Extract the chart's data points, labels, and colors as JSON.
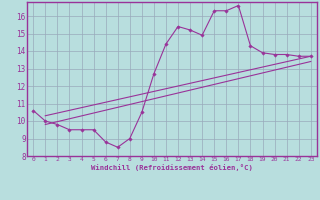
{
  "xlabel": "Windchill (Refroidissement éolien,°C)",
  "xlim": [
    -0.5,
    23.5
  ],
  "ylim": [
    8,
    16.8
  ],
  "yticks": [
    8,
    9,
    10,
    11,
    12,
    13,
    14,
    15,
    16
  ],
  "xticks": [
    0,
    1,
    2,
    3,
    4,
    5,
    6,
    7,
    8,
    9,
    10,
    11,
    12,
    13,
    14,
    15,
    16,
    17,
    18,
    19,
    20,
    21,
    22,
    23
  ],
  "bg_color": "#b8dede",
  "line_color": "#993399",
  "grid_color": "#99aabb",
  "line1_x": [
    0,
    1,
    2,
    3,
    4,
    5,
    6,
    7,
    8,
    9,
    10,
    11,
    12,
    13,
    14,
    15,
    16,
    17,
    18,
    19,
    20,
    21,
    22,
    23
  ],
  "line1_y": [
    10.6,
    10.0,
    9.8,
    9.5,
    9.5,
    9.5,
    8.8,
    8.5,
    9.0,
    10.5,
    12.7,
    14.4,
    15.4,
    15.2,
    14.9,
    16.3,
    16.3,
    16.6,
    14.3,
    13.9,
    13.8,
    13.8,
    13.7,
    13.7
  ],
  "line2_x": [
    1,
    23
  ],
  "line2_y": [
    10.3,
    13.7
  ],
  "line3_x": [
    1,
    23
  ],
  "line3_y": [
    9.8,
    13.4
  ]
}
